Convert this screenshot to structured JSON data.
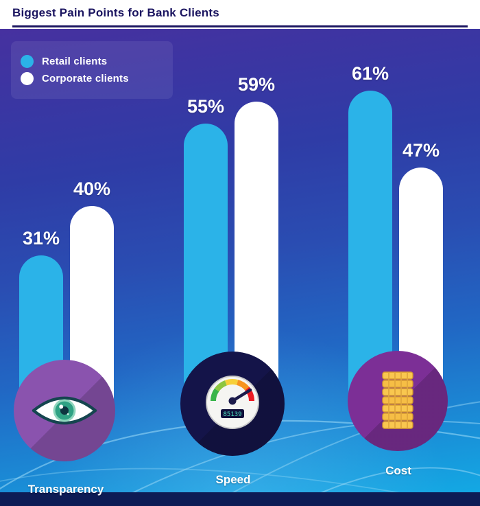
{
  "title": "Biggest Pain Points for Bank Clients",
  "chart_data": {
    "type": "bar",
    "title": "Biggest Pain Points for Bank Clients",
    "categories": [
      "Transparency",
      "Speed",
      "Cost"
    ],
    "series": [
      {
        "name": "Retail clients",
        "color": "#2bb3e8",
        "values": [
          31,
          55,
          61
        ]
      },
      {
        "name": "Corporate clients",
        "color": "#ffffff",
        "values": [
          40,
          59,
          47
        ]
      }
    ],
    "value_suffix": "%",
    "ylim": [
      0,
      100
    ],
    "grid": false,
    "legend_position": "top-left",
    "bar_style": "rounded-pill",
    "value_labels": [
      "31%",
      "40%",
      "55%",
      "59%",
      "61%",
      "47%"
    ]
  },
  "icons": {
    "transparency": {
      "name": "eye-icon",
      "circle_color": "#8a53ae"
    },
    "speedometer": {
      "name": "speedometer-icon",
      "circle_color": "#141449",
      "odometer": "85139"
    },
    "cost": {
      "name": "coins-icon",
      "circle_color": "#7c2f96"
    }
  },
  "colors": {
    "retail_bar": "#2bb3e8",
    "corporate_bar": "#ffffff",
    "title_text": "#1b1560",
    "background_top": "#4b2f9e",
    "background_bottom": "#10ade6",
    "bottom_strip": "#0d1c55",
    "label_text": "#ffffff"
  }
}
